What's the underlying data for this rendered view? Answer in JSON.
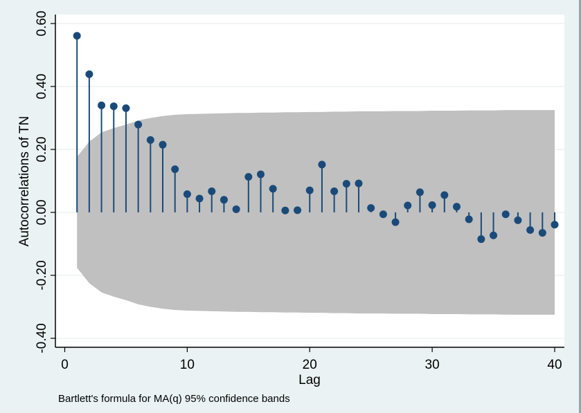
{
  "chart_data": {
    "type": "stem",
    "title": "",
    "ylabel": "Autocorrelations of TN",
    "xlabel": "Lag",
    "note": "Bartlett's formula for MA(q) 95% confidence bands",
    "xlim": [
      0,
      40
    ],
    "ylim": [
      -0.4,
      0.6
    ],
    "x_ticks": [
      0,
      10,
      20,
      30,
      40
    ],
    "x_tick_labels": [
      "0",
      "10",
      "20",
      "30",
      "40"
    ],
    "y_ticks": [
      -0.4,
      -0.2,
      0.0,
      0.2,
      0.4,
      0.6
    ],
    "y_tick_labels": [
      "-0.40",
      "-0.20",
      "0.00",
      "0.20",
      "0.40",
      "0.60"
    ],
    "grid": "horizontal",
    "colors": {
      "marker": "#1a4a7a",
      "band": "#c0c0c0",
      "plot_bg": "#ffffff",
      "page_bg": "#eaf2f3",
      "grid": "#eef2f3",
      "axis": "#000000"
    },
    "series": [
      {
        "name": "Autocorrelations of TN",
        "lags": [
          1,
          2,
          3,
          4,
          5,
          6,
          7,
          8,
          9,
          10,
          11,
          12,
          13,
          14,
          15,
          16,
          17,
          18,
          19,
          20,
          21,
          22,
          23,
          24,
          25,
          26,
          27,
          28,
          29,
          30,
          31,
          32,
          33,
          34,
          35,
          36,
          37,
          38,
          39,
          40
        ],
        "values": [
          0.561,
          0.439,
          0.34,
          0.337,
          0.331,
          0.279,
          0.23,
          0.215,
          0.137,
          0.058,
          0.044,
          0.067,
          0.04,
          0.01,
          0.113,
          0.121,
          0.075,
          0.006,
          0.007,
          0.07,
          0.152,
          0.067,
          0.091,
          0.092,
          0.014,
          -0.006,
          -0.031,
          0.022,
          0.064,
          0.023,
          0.055,
          0.018,
          -0.022,
          -0.085,
          -0.073,
          -0.006,
          -0.025,
          -0.056,
          -0.065,
          -0.039
        ]
      }
    ],
    "confidence_band": {
      "name": "95% confidence bands",
      "lags": [
        1,
        2,
        3,
        4,
        5,
        6,
        7,
        8,
        9,
        10,
        11,
        12,
        13,
        14,
        15,
        16,
        17,
        18,
        19,
        20,
        21,
        22,
        23,
        24,
        25,
        26,
        27,
        28,
        29,
        30,
        31,
        32,
        33,
        34,
        35,
        36,
        37,
        38,
        39,
        40
      ],
      "upper": [
        0.176,
        0.225,
        0.254,
        0.268,
        0.279,
        0.292,
        0.3,
        0.306,
        0.31,
        0.312,
        0.313,
        0.314,
        0.315,
        0.316,
        0.316,
        0.317,
        0.317,
        0.318,
        0.318,
        0.319,
        0.319,
        0.32,
        0.32,
        0.321,
        0.321,
        0.321,
        0.322,
        0.322,
        0.322,
        0.323,
        0.323,
        0.323,
        0.324,
        0.324,
        0.324,
        0.325,
        0.325,
        0.325,
        0.325,
        0.325
      ]
    }
  }
}
